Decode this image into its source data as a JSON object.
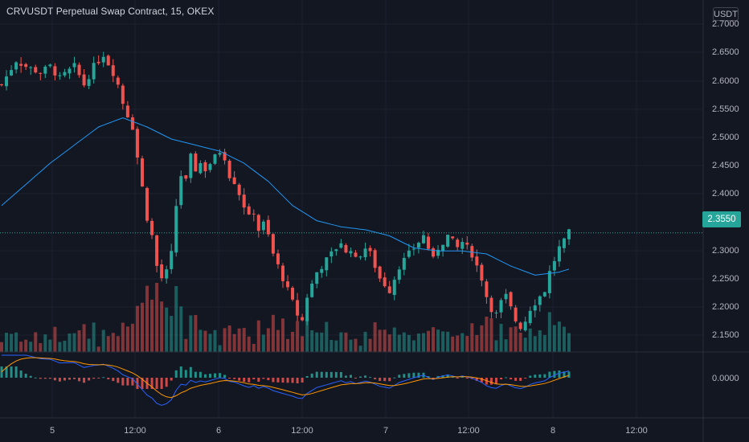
{
  "header": {
    "title": "CRVUSDT Perpetual Swap Contract, 15, OKEX",
    "currency": "USDT"
  },
  "price_axis": {
    "labels": [
      "2.7000",
      "2.6500",
      "2.6000",
      "2.5500",
      "2.5000",
      "2.4500",
      "2.4000",
      "2.3000",
      "2.2500",
      "2.2000",
      "2.1500"
    ],
    "current_price": "2.3550"
  },
  "macd_axis": {
    "label": "0.0000"
  },
  "time_axis": {
    "labels": [
      "5",
      "12:00",
      "6",
      "12:00",
      "7",
      "12:00",
      "8",
      "12:00"
    ]
  },
  "colors": {
    "background": "#131722",
    "up": "#26a69a",
    "down": "#ef5350",
    "ma_line": "#2196f3",
    "macd_line": "#2962ff",
    "signal_line": "#ff9800",
    "grid": "#1e2230"
  },
  "chart_data": {
    "type": "candlestick",
    "symbol": "CRVUSDT",
    "interval": "15",
    "exchange": "OKEX",
    "last_price": 2.355,
    "ylim": [
      2.13,
      2.73
    ],
    "close_path": [
      [
        0,
        2.6
      ],
      [
        3,
        2.64
      ],
      [
        5,
        2.63
      ],
      [
        8,
        2.62
      ],
      [
        10,
        2.63
      ],
      [
        12,
        2.61
      ],
      [
        15,
        2.63
      ],
      [
        17,
        2.6
      ],
      [
        19,
        2.63
      ],
      [
        21,
        2.65
      ],
      [
        23,
        2.62
      ],
      [
        24,
        2.6
      ],
      [
        25,
        2.57
      ],
      [
        26,
        2.55
      ],
      [
        27,
        2.53
      ],
      [
        28,
        2.48
      ],
      [
        29,
        2.43
      ],
      [
        30,
        2.38
      ],
      [
        31,
        2.35
      ],
      [
        32,
        2.3
      ],
      [
        33,
        2.28
      ],
      [
        34,
        2.29
      ],
      [
        35,
        2.32
      ],
      [
        36,
        2.4
      ],
      [
        37,
        2.45
      ],
      [
        38,
        2.44
      ],
      [
        39,
        2.48
      ],
      [
        40,
        2.46
      ],
      [
        41,
        2.47
      ],
      [
        42,
        2.46
      ],
      [
        43,
        2.47
      ],
      [
        44,
        2.48
      ],
      [
        45,
        2.49
      ],
      [
        46,
        2.48
      ],
      [
        47,
        2.45
      ],
      [
        48,
        2.44
      ],
      [
        49,
        2.42
      ],
      [
        50,
        2.4
      ],
      [
        51,
        2.38
      ],
      [
        52,
        2.39
      ],
      [
        53,
        2.36
      ],
      [
        54,
        2.37
      ],
      [
        55,
        2.35
      ],
      [
        56,
        2.32
      ],
      [
        57,
        2.3
      ],
      [
        58,
        2.28
      ],
      [
        59,
        2.26
      ],
      [
        60,
        2.24
      ],
      [
        61,
        2.22
      ],
      [
        62,
        2.21
      ],
      [
        63,
        2.25
      ],
      [
        64,
        2.27
      ],
      [
        65,
        2.29
      ],
      [
        66,
        2.3
      ],
      [
        67,
        2.31
      ],
      [
        68,
        2.32
      ],
      [
        69,
        2.33
      ],
      [
        70,
        2.34
      ],
      [
        71,
        2.32
      ],
      [
        72,
        2.33
      ],
      [
        73,
        2.31
      ],
      [
        74,
        2.32
      ],
      [
        75,
        2.33
      ],
      [
        76,
        2.32
      ],
      [
        77,
        2.3
      ],
      [
        78,
        2.28
      ],
      [
        79,
        2.27
      ],
      [
        80,
        2.26
      ],
      [
        81,
        2.28
      ],
      [
        82,
        2.3
      ],
      [
        83,
        2.31
      ],
      [
        84,
        2.32
      ],
      [
        85,
        2.33
      ],
      [
        86,
        2.34
      ],
      [
        87,
        2.35
      ],
      [
        88,
        2.33
      ],
      [
        89,
        2.31
      ],
      [
        90,
        2.33
      ],
      [
        91,
        2.34
      ],
      [
        92,
        2.35
      ],
      [
        93,
        2.34
      ],
      [
        94,
        2.33
      ],
      [
        95,
        2.34
      ],
      [
        96,
        2.33
      ],
      [
        97,
        2.32
      ],
      [
        98,
        2.3
      ],
      [
        99,
        2.28
      ],
      [
        100,
        2.25
      ],
      [
        101,
        2.23
      ],
      [
        102,
        2.22
      ],
      [
        103,
        2.24
      ],
      [
        104,
        2.25
      ],
      [
        105,
        2.23
      ],
      [
        106,
        2.21
      ],
      [
        107,
        2.2
      ],
      [
        108,
        2.21
      ],
      [
        109,
        2.23
      ],
      [
        110,
        2.24
      ],
      [
        111,
        2.25
      ],
      [
        112,
        2.26
      ],
      [
        113,
        2.29
      ],
      [
        114,
        2.31
      ],
      [
        115,
        2.33
      ],
      [
        116,
        2.34
      ],
      [
        117,
        2.355
      ]
    ],
    "ma_line": [
      [
        0,
        2.4
      ],
      [
        10,
        2.47
      ],
      [
        20,
        2.53
      ],
      [
        25,
        2.545
      ],
      [
        30,
        2.53
      ],
      [
        35,
        2.51
      ],
      [
        40,
        2.5
      ],
      [
        45,
        2.49
      ],
      [
        50,
        2.47
      ],
      [
        55,
        2.44
      ],
      [
        60,
        2.4
      ],
      [
        65,
        2.375
      ],
      [
        70,
        2.365
      ],
      [
        75,
        2.36
      ],
      [
        80,
        2.35
      ],
      [
        85,
        2.33
      ],
      [
        90,
        2.325
      ],
      [
        95,
        2.325
      ],
      [
        100,
        2.32
      ],
      [
        105,
        2.3
      ],
      [
        110,
        2.285
      ],
      [
        115,
        2.29
      ],
      [
        117,
        2.295
      ]
    ]
  }
}
